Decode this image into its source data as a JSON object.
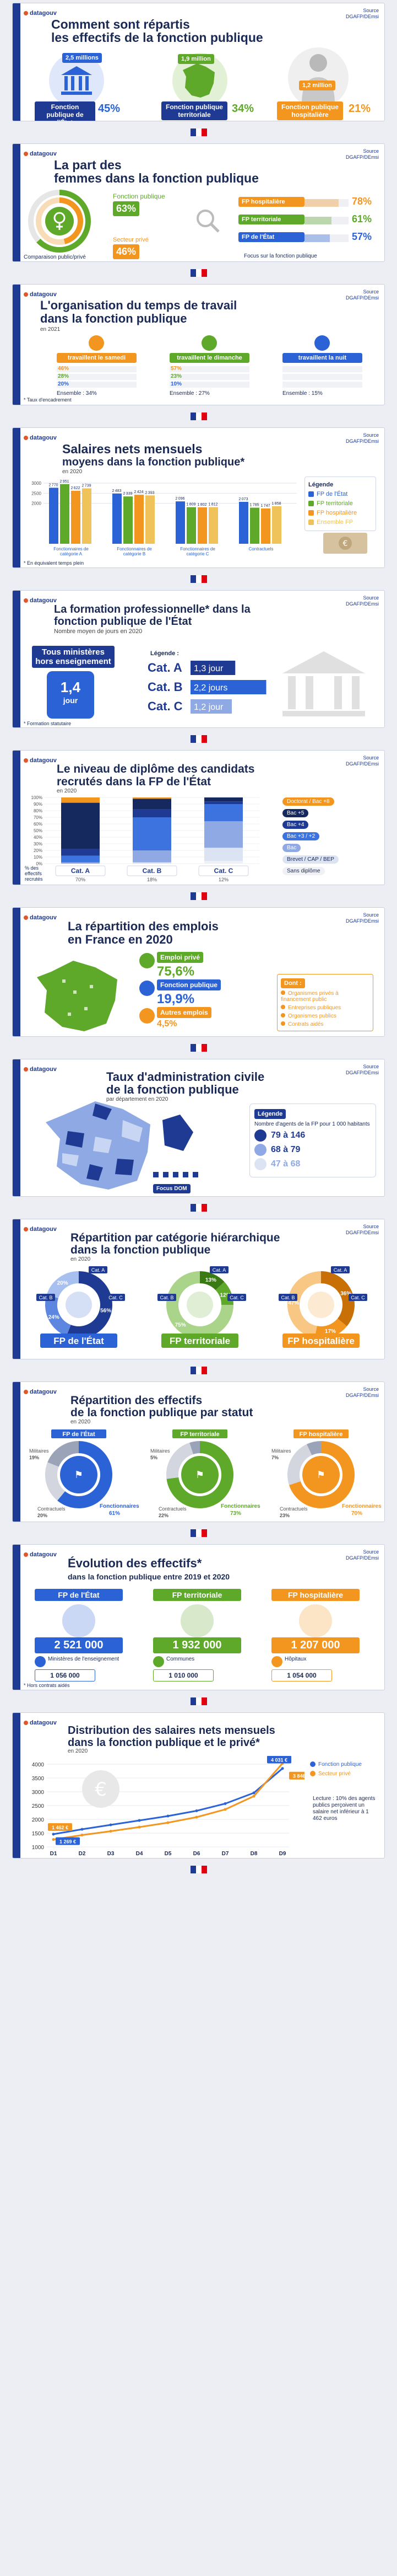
{
  "brand": {
    "logo_label": "datagouv",
    "source_label": "Source\nDGAFP/DEmsi"
  },
  "colors": {
    "navy": "#1f3a93",
    "state": "#2b62d6",
    "territorial": "#5ea82a",
    "hospital": "#f2961f",
    "red": "#e1000f",
    "beige": "#d7c2a0"
  },
  "panel1": {
    "title_line1": "Comment sont répartis",
    "title_line2": "les effectifs de la fonction publique",
    "state": {
      "value": "2,5 millions",
      "name": "Fonction publique de l'État",
      "pct": "45%"
    },
    "territorial": {
      "value": "1,9 million",
      "name": "Fonction publique territoriale",
      "pct": "34%"
    },
    "hospital": {
      "value": "1,2 million",
      "name": "Fonction publique hospitalière",
      "pct": "21%"
    }
  },
  "panel2": {
    "title_line1": "La part des",
    "title_line2": "femmes dans la fonction publique",
    "public_label": "Fonction publique",
    "public_pct": "63%",
    "private_label": "Secteur privé",
    "private_pct": "46%",
    "compare_caption": "Comparaison public/privé",
    "focus_caption": "Focus sur la fonction publique",
    "rows": [
      {
        "name": "FP hospitalière",
        "pct": "78%"
      },
      {
        "name": "FP territoriale",
        "pct": "61%"
      },
      {
        "name": "FP de l'État",
        "pct": "57%"
      }
    ],
    "chart_data": {
      "type": "bar",
      "categories": [
        "FP hospitalière",
        "FP territoriale",
        "FP de l'État"
      ],
      "values": [
        78,
        61,
        57
      ],
      "ylim": [
        0,
        100
      ]
    }
  },
  "panel3": {
    "title_line1": "L'organisation du temps de travail",
    "title_line2": "dans la fonction publique",
    "year": "en 2021",
    "cols": [
      {
        "head": "travaillent le samedi",
        "rows": [
          "46%",
          "28%",
          "20%"
        ],
        "total": "Ensemble : 34%"
      },
      {
        "head": "travaillent le dimanche",
        "rows": [
          "57%",
          "23%",
          "10%"
        ],
        "total": "Ensemble : 27%"
      },
      {
        "head": "travaillent la nuit",
        "rows": [
          "",
          "",
          ""
        ],
        "total": "Ensemble : 15%"
      }
    ],
    "footnote": "* Taux d'encadrement"
  },
  "panel4": {
    "title_line1": "Salaires nets mensuels",
    "title_line2": "moyens dans la fonction publique*",
    "year": "en 2020",
    "legend_title": "Légende",
    "footnote": "* En équivalent temps plein",
    "chart_data": {
      "type": "bar",
      "categories": [
        "Fonctionnaires de catégorie A",
        "Fonctionnaires de catégorie B",
        "Fonctionnaires de catégorie C",
        "Contractuels"
      ],
      "ylim": [
        0,
        3000
      ],
      "series": [
        {
          "name": "FP de l'État",
          "values": [
            2770,
            2483,
            2096,
            2073
          ]
        },
        {
          "name": "FP territoriale",
          "values": [
            2951,
            2339,
            1809,
            1785
          ]
        },
        {
          "name": "FP hospitalière",
          "values": [
            2622,
            2424,
            1802,
            1747
          ]
        },
        {
          "name": "Ensemble FP",
          "values": [
            2739,
            2393,
            1812,
            1858
          ]
        }
      ]
    }
  },
  "panel5": {
    "title_line1": "La formation professionnelle* dans la",
    "title_line2": "fonction publique de l'État",
    "subtitle": "Nombre moyen de jours en 2020",
    "big_label": "Tous ministères hors enseignement",
    "big_value": "1,4",
    "big_unit": "jour",
    "legend_title": "Légende :",
    "rows": [
      {
        "cat": "Cat. A",
        "val": "1,3 jour"
      },
      {
        "cat": "Cat. B",
        "val": "2,2 jours"
      },
      {
        "cat": "Cat. C",
        "val": "1,2 jour"
      }
    ],
    "footnote": "* Formation statutaire",
    "chart_data": {
      "type": "bar",
      "categories": [
        "Cat. A",
        "Cat. B",
        "Cat. C"
      ],
      "values": [
        1.3,
        2.2,
        1.2
      ]
    }
  },
  "panel6": {
    "title_line1": "Le niveau de diplôme des candidats",
    "title_line2": "recrutés dans la FP de l'État",
    "year": "en 2020",
    "ticks": [
      "100%",
      "90%",
      "80%",
      "70%",
      "60%",
      "50%",
      "40%",
      "30%",
      "20%",
      "10%",
      "0%"
    ],
    "legend": [
      "Doctorat / Bac +8",
      "Bac +5",
      "Bac +4",
      "Bac +3 / +2",
      "Bac",
      "Brevet / CAP / BEP",
      "Sans diplôme"
    ],
    "caption": "% des effectifs recrutés",
    "chart_data": {
      "type": "bar",
      "categories": [
        "Cat. A",
        "Cat. B",
        "Cat. C"
      ],
      "shares": [
        "70%",
        "18%",
        "12%"
      ],
      "series": [
        {
          "name": "Sans diplôme",
          "values": [
            0,
            0,
            4
          ]
        },
        {
          "name": "Brevet / CAP / BEP",
          "values": [
            0,
            2,
            20
          ]
        },
        {
          "name": "Bac",
          "values": [
            2,
            18,
            40
          ]
        },
        {
          "name": "Bac +3 / +2",
          "values": [
            10,
            50,
            26
          ]
        },
        {
          "name": "Bac +4",
          "values": [
            10,
            12,
            4
          ]
        },
        {
          "name": "Bac +5",
          "values": [
            70,
            16,
            6
          ]
        },
        {
          "name": "Doctorat / Bac +8",
          "values": [
            8,
            2,
            0
          ]
        }
      ]
    }
  },
  "panel7": {
    "title_line1": "La répartition des emplois",
    "title_line2": "en France en 2020",
    "rows": [
      {
        "name": "Emploi privé",
        "pct": "75,6%"
      },
      {
        "name": "Fonction publique",
        "pct": "19,9%"
      },
      {
        "name": "Autres emplois",
        "pct": "4,5%"
      }
    ],
    "detail_title": "Dont :",
    "details": [
      "Organismes privés à financement public",
      "Entreprises publiques",
      "Organismes publics",
      "Contrats aidés"
    ]
  },
  "panel8": {
    "title_line1": "Taux d'administration civile",
    "title_line2": "de la fonction publique",
    "year": "par département en 2020",
    "legend_title": "Légende",
    "legend_text": "Nombre d'agents de la FP pour 1 000 habitants",
    "classes": [
      "79 à 146",
      "68 à 79",
      "47 à 68"
    ],
    "dom_label": "Focus DOM"
  },
  "panel9": {
    "title_line1": "Répartition par catégorie hiérarchique",
    "title_line2": "dans la fonction publique",
    "year": "en 2020",
    "donuts": [
      {
        "name": "FP de l'État",
        "a": "56%",
        "b": "24%",
        "c": "20%"
      },
      {
        "name": "FP territoriale",
        "a": "13%",
        "b": "12%",
        "c": "75%"
      },
      {
        "name": "FP hospitalière",
        "a": "36%",
        "b": "17%",
        "c": "47%"
      }
    ],
    "cat_labels": [
      "Cat. A",
      "Cat. B",
      "Cat. C"
    ]
  },
  "panel10": {
    "title_line1": "Répartition des effectifs",
    "title_line2": "de la fonction publique par statut",
    "year": "en 2020",
    "donuts": [
      {
        "name": "FP de l'État",
        "fonct": "61%",
        "contract": "20%",
        "other": "19%"
      },
      {
        "name": "FP territoriale",
        "fonct": "73%",
        "contract": "22%",
        "other": "5%"
      },
      {
        "name": "FP hospitalière",
        "fonct": "70%",
        "contract": "23%",
        "other": "7%"
      }
    ],
    "labels": {
      "fonct": "Fonctionnaires",
      "contract": "Contractuels",
      "other": "Militaires"
    }
  },
  "panel11": {
    "title_line1": "Évolution des effectifs*",
    "title_line2": "dans la fonction publique entre 2019 et 2020",
    "cols": [
      {
        "name": "FP de l'État",
        "value": "2 521 000",
        "sub_value": "1 056 000",
        "sub_name": "Ministères de l'enseignement"
      },
      {
        "name": "FP territoriale",
        "value": "1 932 000",
        "sub_value": "1 010 000",
        "sub_name": "Communes"
      },
      {
        "name": "FP hospitalière",
        "value": "1 207 000",
        "sub_value": "1 054 000",
        "sub_name": "Hôpitaux"
      }
    ],
    "footnote": "* Hors contrats aidés"
  },
  "panel12": {
    "title_line1": "Distribution des salaires nets mensuels",
    "title_line2": "dans la fonction publique et le privé*",
    "year": "en 2020",
    "legend": [
      "Fonction publique",
      "Secteur privé"
    ],
    "note": "Lecture : 10% des agents publics perçoivent un salaire net inférieur à 1 462 euros",
    "point_labels": [
      "4 031 €",
      "3 846 €",
      "1 462 €",
      "1 269 €"
    ],
    "chart_data": {
      "type": "line",
      "categories": [
        "D1",
        "D2",
        "D3",
        "D4",
        "D5",
        "D6",
        "D7",
        "D8",
        "D9"
      ],
      "ylim": [
        1000,
        4000
      ],
      "yticks": [
        1000,
        1500,
        2000,
        2500,
        3000,
        3500,
        4000
      ],
      "series": [
        {
          "name": "Fonction publique",
          "values": [
            1462,
            1640,
            1800,
            1960,
            2120,
            2310,
            2570,
            2960,
            3846
          ]
        },
        {
          "name": "Secteur privé",
          "values": [
            1269,
            1430,
            1570,
            1720,
            1880,
            2080,
            2360,
            2840,
            4031
          ]
        }
      ]
    }
  }
}
